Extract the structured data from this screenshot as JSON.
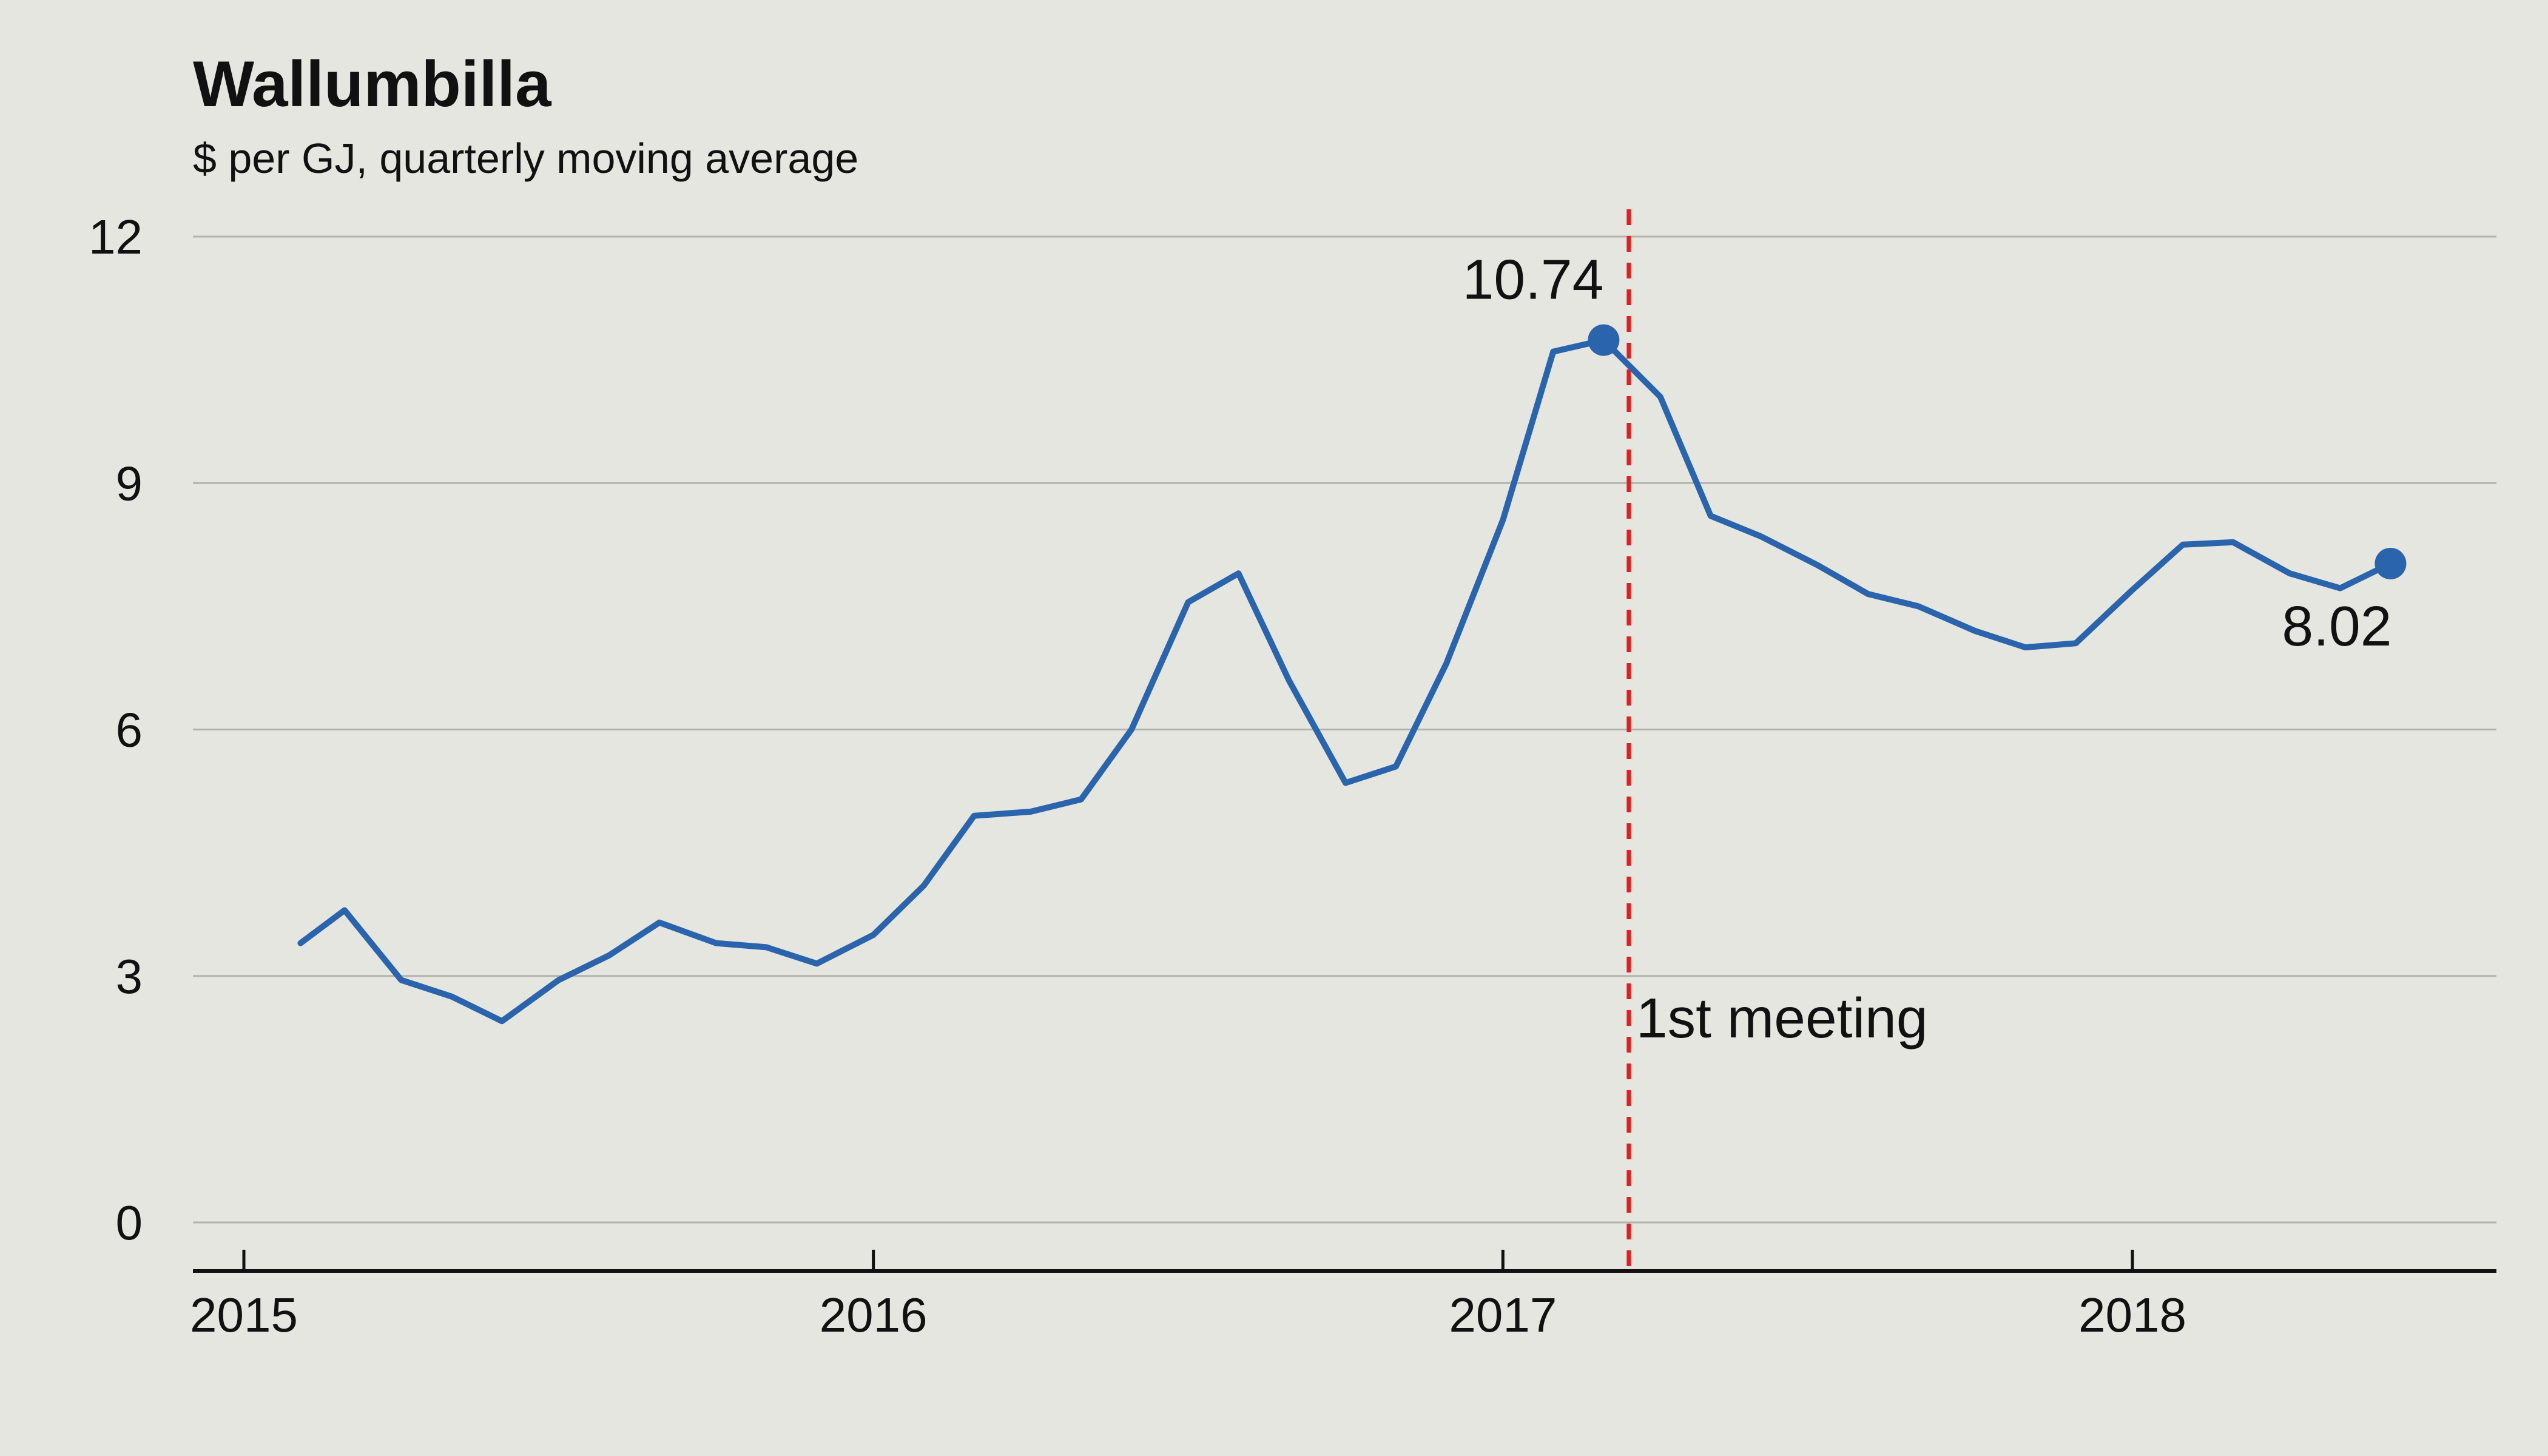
{
  "chart_data": {
    "type": "line",
    "title": "Wallumbilla",
    "subtitle": "$ per GJ, quarterly moving average",
    "xlabel": "",
    "ylabel": "",
    "xlim": [
      2015,
      2018.625
    ],
    "ylim": [
      0,
      12
    ],
    "y_ticks": [
      {
        "value": 0,
        "label": "0"
      },
      {
        "value": 3,
        "label": "3"
      },
      {
        "value": 6,
        "label": "6"
      },
      {
        "value": 9,
        "label": "9"
      },
      {
        "value": 12,
        "label": "12"
      }
    ],
    "x_ticks": [
      {
        "value": 2015,
        "label": "2015"
      },
      {
        "value": 2016,
        "label": "2016"
      },
      {
        "value": 2017,
        "label": "2017"
      },
      {
        "value": 2018,
        "label": "2018"
      }
    ],
    "grid": true,
    "series": [
      {
        "name": "Wallumbilla",
        "color": "#2a64ad",
        "x": [
          2015.09,
          2015.16,
          2015.25,
          2015.33,
          2015.41,
          2015.5,
          2015.58,
          2015.66,
          2015.75,
          2015.83,
          2015.91,
          2016.0,
          2016.08,
          2016.16,
          2016.25,
          2016.33,
          2016.41,
          2016.5,
          2016.58,
          2016.66,
          2016.75,
          2016.83,
          2016.91,
          2017.0,
          2017.08,
          2017.16,
          2017.25,
          2017.33,
          2017.41,
          2017.5,
          2017.58,
          2017.66,
          2017.75,
          2017.83,
          2017.91,
          2018.0,
          2018.08,
          2018.16,
          2018.25,
          2018.33,
          2018.41
        ],
        "y": [
          3.4,
          3.8,
          2.95,
          2.75,
          2.45,
          2.95,
          3.25,
          3.65,
          3.4,
          3.35,
          3.15,
          3.5,
          4.1,
          4.95,
          5.0,
          5.15,
          6.0,
          7.55,
          7.9,
          6.6,
          5.35,
          5.55,
          6.8,
          8.55,
          10.6,
          10.74,
          10.05,
          8.6,
          8.35,
          8.0,
          7.65,
          7.5,
          7.2,
          7.0,
          7.05,
          7.7,
          8.25,
          8.28,
          7.9,
          7.72,
          8.02
        ]
      }
    ],
    "highlights": [
      {
        "x": 2017.16,
        "y": 10.74,
        "label": "10.74",
        "position": "above-left"
      },
      {
        "x": 2018.41,
        "y": 8.02,
        "label": "8.02",
        "position": "below-left"
      }
    ],
    "annotations": [
      {
        "type": "vertical-line",
        "x": 2017.2,
        "label": "1st meeting",
        "color": "#e02020",
        "style": "dashed"
      }
    ]
  }
}
